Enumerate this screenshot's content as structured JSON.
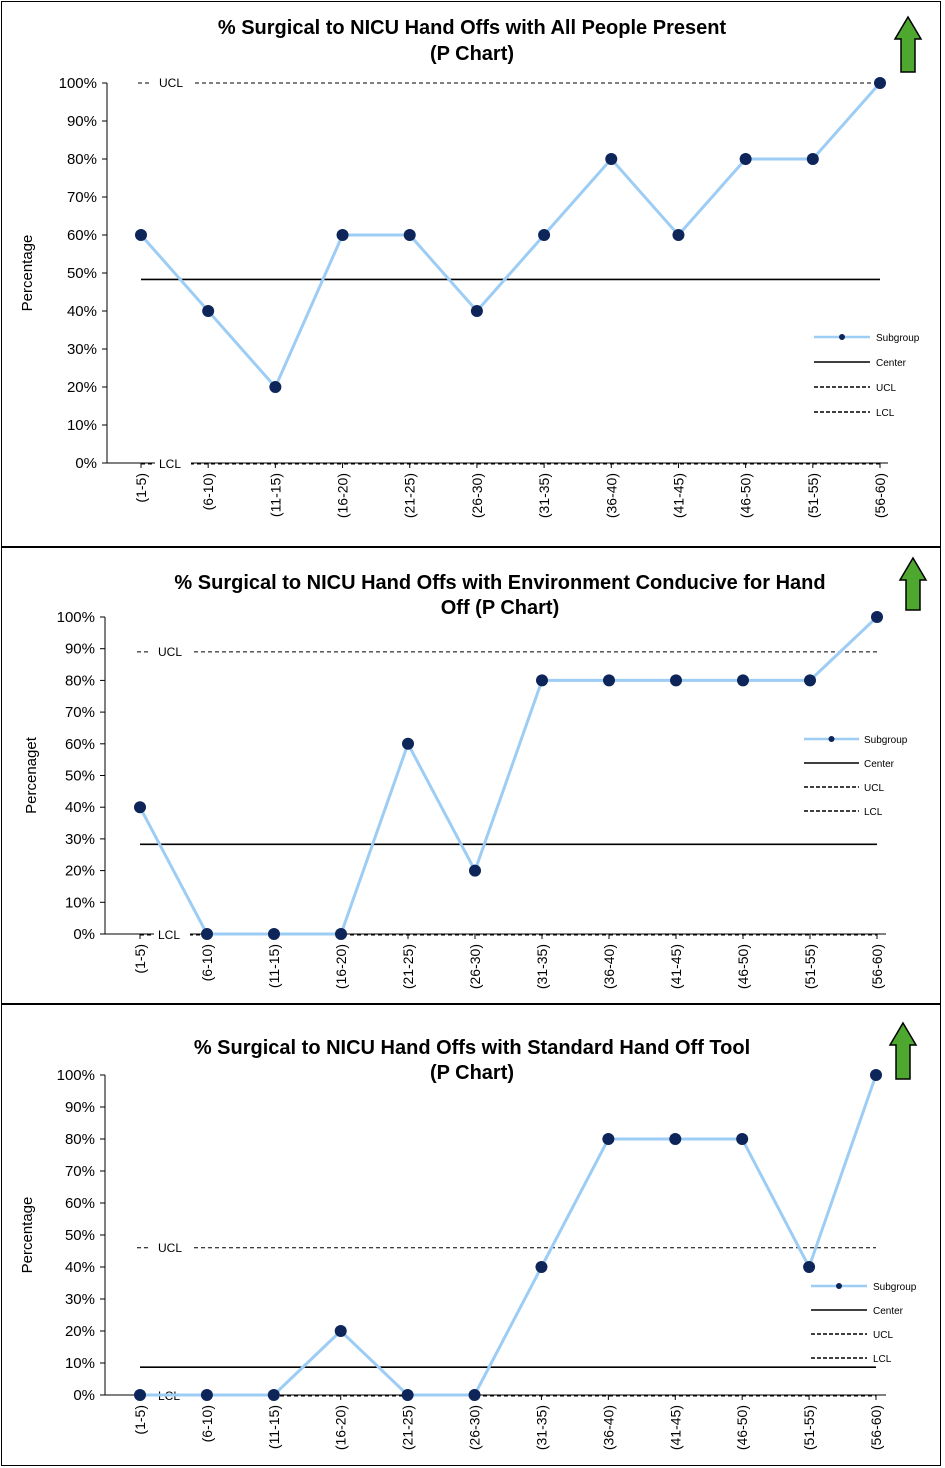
{
  "colors": {
    "subgroup_line": "#9dcdf5",
    "subgroup_marker": "#0d2558",
    "center_line": "#000000",
    "limit_line": "#000000",
    "arrow_fill": "#4ea72e",
    "arrow_stroke": "#000000"
  },
  "icons": {
    "improvement_arrow": "up-arrow-icon"
  },
  "chart_data": [
    {
      "type": "line",
      "title_lines": [
        "% Surgical to NICU Hand Offs with All People Present",
        "(P Chart)"
      ],
      "ylabel": "Percentage",
      "xlabel": "",
      "categories": [
        "(1-5)",
        "(6-10)",
        "(11-15)",
        "(16-20)",
        "(21-25)",
        "(26-30)",
        "(31-35)",
        "(36-40)",
        "(41-45)",
        "(46-50)",
        "(51-55)",
        "(56-60)"
      ],
      "ylim": [
        0,
        100
      ],
      "yticks": [
        "0%",
        "10%",
        "20%",
        "30%",
        "40%",
        "50%",
        "60%",
        "70%",
        "80%",
        "90%",
        "100%"
      ],
      "grid": false,
      "series": [
        {
          "name": "Subgroup",
          "values": [
            60,
            40,
            20,
            60,
            60,
            40,
            60,
            80,
            60,
            80,
            80,
            100
          ]
        }
      ],
      "center": 48.3,
      "ucl": 100,
      "lcl": 0,
      "ucl_label": "UCL",
      "lcl_label": "LCL",
      "legend": [
        "Subgroup",
        "Center",
        "UCL",
        "LCL"
      ],
      "legend_position": "right"
    },
    {
      "type": "line",
      "title_lines": [
        "% Surgical to NICU Hand Offs with Environment Conducive for Hand",
        "Off (P Chart)"
      ],
      "ylabel": "Percenaget",
      "xlabel": "",
      "categories": [
        "(1-5)",
        "(6-10)",
        "(11-15)",
        "(16-20)",
        "(21-25)",
        "(26-30)",
        "(31-35)",
        "(36-40)",
        "(41-45)",
        "(46-50)",
        "(51-55)",
        "(56-60)"
      ],
      "ylim": [
        0,
        100
      ],
      "yticks": [
        "0%",
        "10%",
        "20%",
        "30%",
        "40%",
        "50%",
        "60%",
        "70%",
        "80%",
        "90%",
        "100%"
      ],
      "grid": false,
      "series": [
        {
          "name": "Subgroup",
          "values": [
            40,
            0,
            0,
            0,
            60,
            20,
            80,
            80,
            80,
            80,
            80,
            100
          ]
        }
      ],
      "center": 28.3,
      "ucl": 89,
      "lcl": 0,
      "ucl_label": "UCL",
      "lcl_label": "LCL",
      "legend": [
        "Subgroup",
        "Center",
        "UCL",
        "LCL"
      ],
      "legend_position": "right"
    },
    {
      "type": "line",
      "title_lines": [
        "% Surgical to NICU Hand Offs with Standard Hand Off Tool",
        "(P Chart)"
      ],
      "ylabel": "Percentage",
      "xlabel": "",
      "categories": [
        "(1-5)",
        "(6-10)",
        "(11-15)",
        "(16-20)",
        "(21-25)",
        "(26-30)",
        "(31-35)",
        "(36-40)",
        "(41-45)",
        "(46-50)",
        "(51-55)",
        "(56-60)"
      ],
      "ylim": [
        0,
        100
      ],
      "yticks": [
        "0%",
        "10%",
        "20%",
        "30%",
        "40%",
        "50%",
        "60%",
        "70%",
        "80%",
        "90%",
        "100%"
      ],
      "grid": false,
      "series": [
        {
          "name": "Subgroup",
          "values": [
            0,
            0,
            0,
            20,
            0,
            0,
            40,
            80,
            80,
            80,
            40,
            100
          ]
        }
      ],
      "center": 8.7,
      "ucl": 46,
      "lcl": 0,
      "ucl_label": "UCL",
      "lcl_label": "LCL",
      "legend": [
        "Subgroup",
        "Center",
        "UCL",
        "LCL"
      ],
      "legend_position": "lower-right"
    }
  ]
}
